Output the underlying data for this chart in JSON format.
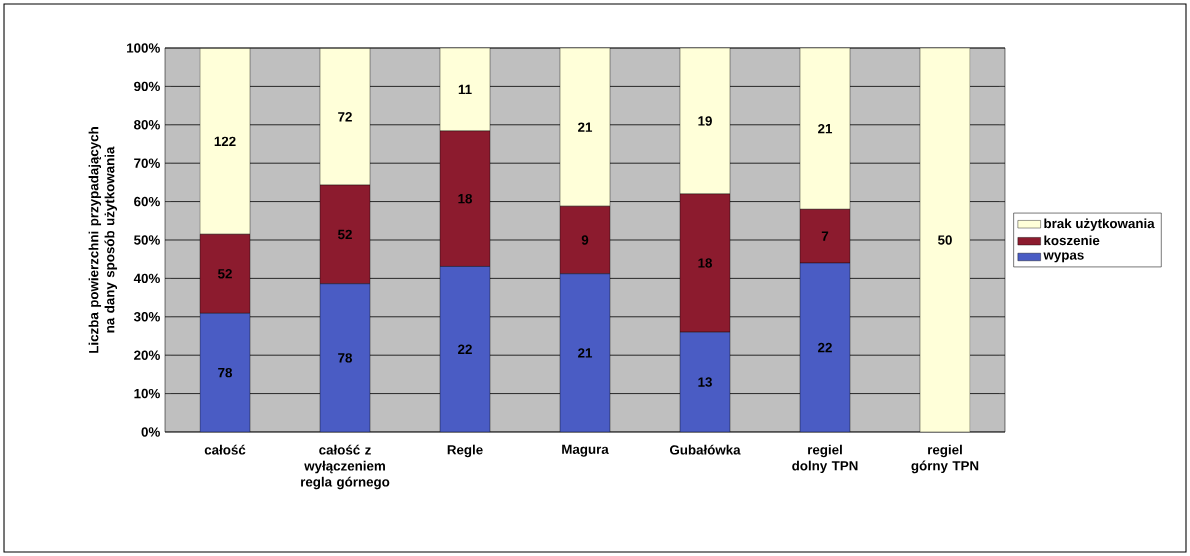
{
  "chart_data": {
    "type": "bar",
    "stacked": true,
    "ylabel": "Liczba powierzchni przypadających na dany sposób użytkowania",
    "categories": [
      "całość",
      "całość z wyłączeniem regla górnego",
      "Regle",
      "Magura",
      "Gubałówka",
      "regiel dolny TPN",
      "regiel górny TPN"
    ],
    "series": [
      {
        "name": "wypas",
        "color": "#4a5cc4",
        "values": [
          30.9,
          38.6,
          43.1,
          41.2,
          26,
          44,
          0
        ]
      },
      {
        "name": "koszenie",
        "color": "#8c1b2e",
        "values": [
          20.6,
          25.7,
          35.3,
          17.6,
          36,
          14,
          0
        ]
      },
      {
        "name": "brak użytkowania",
        "color": "#ffffd9",
        "values": [
          48.4,
          35.6,
          21.6,
          41.2,
          38,
          42,
          100
        ]
      }
    ],
    "annotations": [
      "78",
      "52",
      "122",
      "78",
      "52",
      "72",
      "22",
      "18",
      "11",
      "21",
      "9",
      "21",
      "13",
      "18",
      "19",
      "22",
      "7",
      "21",
      "50"
    ],
    "ylim": [
      0,
      100
    ],
    "yticks": [
      {
        "value": 0,
        "label": "0%"
      },
      {
        "value": 10,
        "label": "10%"
      },
      {
        "value": 20,
        "label": "20%"
      },
      {
        "value": 30,
        "label": "30%"
      },
      {
        "value": 40,
        "label": "40%"
      },
      {
        "value": 50,
        "label": "50%"
      },
      {
        "value": 60,
        "label": "60%"
      },
      {
        "value": 70,
        "label": "70%"
      },
      {
        "value": 80,
        "label": "80%"
      },
      {
        "value": 90,
        "label": "90%"
      },
      {
        "value": 100,
        "label": "100%"
      }
    ],
    "grid": "y",
    "legend": "right"
  }
}
